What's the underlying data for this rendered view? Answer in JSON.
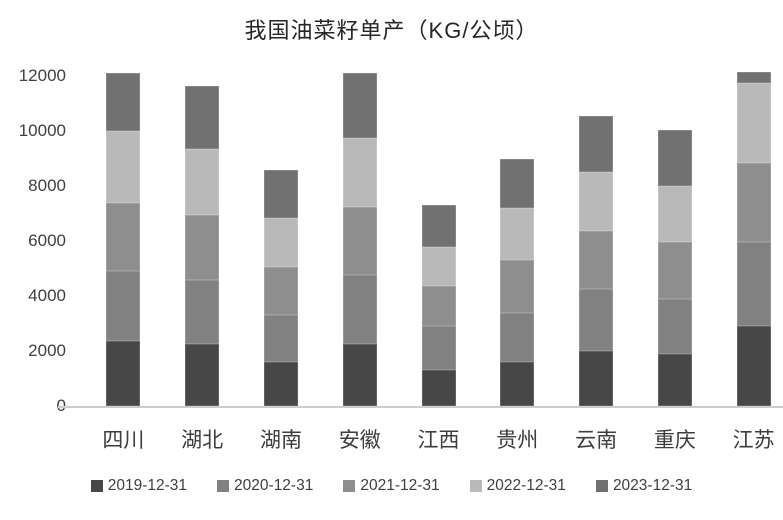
{
  "chart_data": {
    "type": "bar",
    "stacked": true,
    "title": "我国油菜籽单产（KG/公顷）",
    "xlabel": "",
    "ylabel": "",
    "ylim": [
      0,
      12000
    ],
    "yticks": [
      0,
      2000,
      4000,
      6000,
      8000,
      10000,
      12000
    ],
    "grid": false,
    "legend_position": "bottom",
    "categories": [
      "四川",
      "湖北",
      "湖南",
      "安徽",
      "江西",
      "贵州",
      "云南",
      "重庆",
      "江苏"
    ],
    "series": [
      {
        "name": "2019-12-31",
        "color": "#474747",
        "values": [
          2350,
          2250,
          1600,
          2250,
          1300,
          1600,
          2000,
          1900,
          2900
        ]
      },
      {
        "name": "2020-12-31",
        "color": "#818181",
        "values": [
          2550,
          2350,
          1700,
          2500,
          1600,
          1800,
          2250,
          2000,
          3050
        ]
      },
      {
        "name": "2021-12-31",
        "color": "#8e8e8e",
        "values": [
          2500,
          2350,
          1750,
          2500,
          1450,
          1900,
          2100,
          2050,
          2900
        ]
      },
      {
        "name": "2022-12-31",
        "color": "#b9b9b9",
        "values": [
          2600,
          2400,
          1800,
          2500,
          1450,
          1900,
          2150,
          2050,
          2900
        ]
      },
      {
        "name": "2023-12-31",
        "color": "#717171",
        "values": [
          2100,
          2300,
          1750,
          2350,
          1500,
          1800,
          2050,
          2050,
          400
        ]
      }
    ]
  }
}
